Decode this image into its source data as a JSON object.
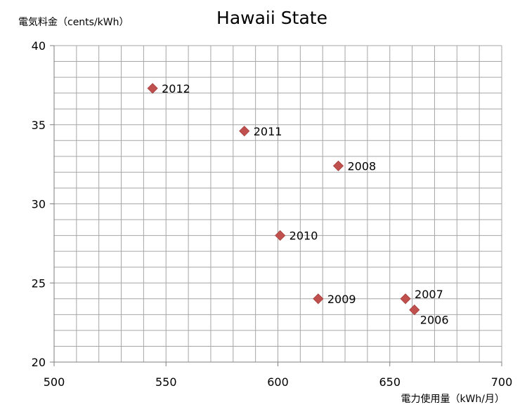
{
  "chart_data": {
    "type": "scatter",
    "title": "Hawaii State",
    "xlabel": "電力使用量（kWh/月）",
    "ylabel": "電気料金（cents/kWh）",
    "xlim": [
      500,
      700
    ],
    "ylim": [
      20,
      40
    ],
    "x_ticks": [
      500,
      550,
      600,
      650,
      700
    ],
    "y_ticks": [
      20,
      25,
      30,
      35,
      40
    ],
    "x_minor_step": 10,
    "y_minor_step": 1,
    "grid": true,
    "marker": "diamond",
    "marker_color": "#c0504d",
    "points": [
      {
        "x": 544,
        "y": 37.3,
        "label": "2012"
      },
      {
        "x": 585,
        "y": 34.6,
        "label": "2011"
      },
      {
        "x": 627,
        "y": 32.4,
        "label": "2008"
      },
      {
        "x": 601,
        "y": 28.0,
        "label": "2010"
      },
      {
        "x": 618,
        "y": 24.0,
        "label": "2009"
      },
      {
        "x": 657,
        "y": 24.0,
        "label": "2007"
      },
      {
        "x": 661,
        "y": 23.3,
        "label": "2006"
      }
    ]
  }
}
